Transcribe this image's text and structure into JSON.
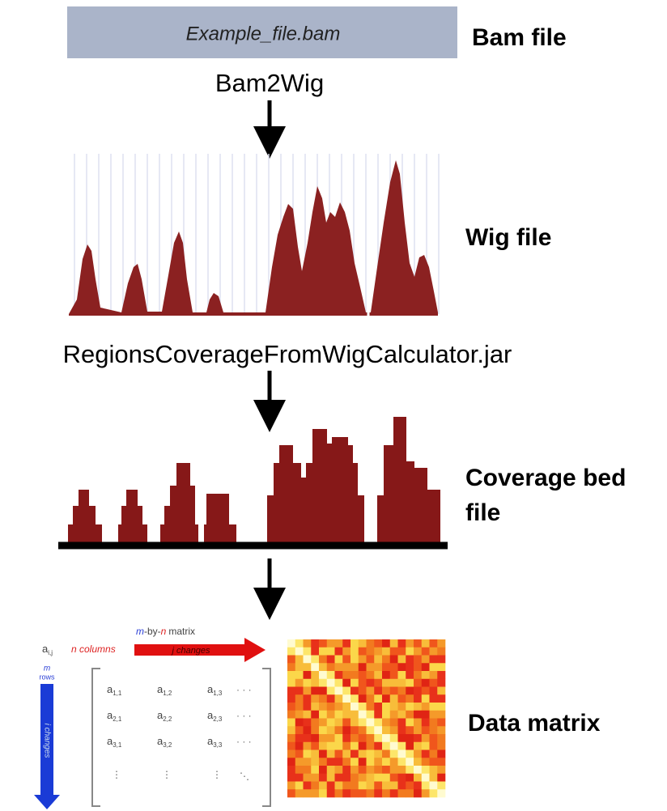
{
  "steps": [
    {
      "box_text": "Example_file.bam",
      "label": "Bam file"
    },
    {
      "tool": "Bam2Wig",
      "label": "Wig file"
    },
    {
      "tool": "RegionsCoverageFromWigCalculator.jar",
      "label_lines": [
        "Coverage bed",
        "file"
      ]
    },
    {
      "label": "Data matrix"
    }
  ],
  "matrix_figure": {
    "corner": "a",
    "corner_sub": "i,j",
    "title": {
      "m": "m",
      "by": "-by-",
      "n": "n",
      "rest": "matrix"
    },
    "columns_label": "n columns",
    "j_label": "j changes",
    "rows_label": {
      "m": "m",
      "rows": "rows"
    },
    "i_label": "i changes",
    "entry_letter": "a",
    "entries": [
      [
        "1,1",
        "1,2",
        "1,3"
      ],
      [
        "2,1",
        "2,2",
        "2,3"
      ],
      [
        "3,1",
        "3,2",
        "3,3"
      ]
    ]
  }
}
